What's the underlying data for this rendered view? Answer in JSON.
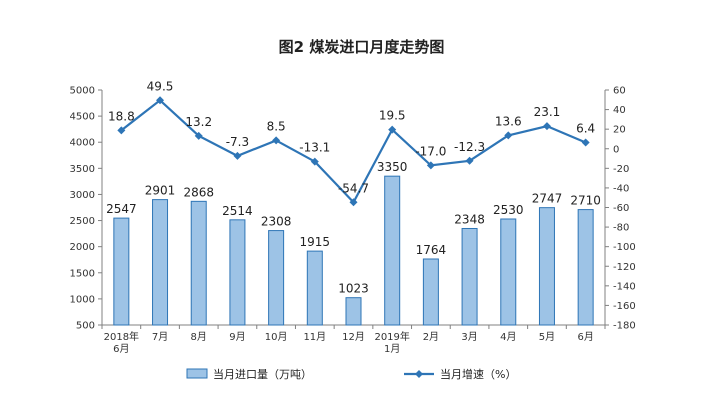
{
  "chart_data": {
    "type": "bar",
    "title": "图2  煤炭进口月度走势图",
    "categories": [
      "2018年\n6月",
      "7月",
      "8月",
      "9月",
      "10月",
      "11月",
      "12月",
      "2019年\n1月",
      "2月",
      "3月",
      "4月",
      "5月",
      "6月"
    ],
    "series": [
      {
        "name": "当月进口量（万吨）",
        "type": "bar",
        "axis": "left",
        "values": [
          2547,
          2901,
          2868,
          2514,
          2308,
          1915,
          1023,
          3350,
          1764,
          2348,
          2530,
          2747,
          2710
        ],
        "labels": [
          "2547",
          "2901",
          "2868",
          "2514",
          "2308",
          "1915",
          "1023",
          "3350",
          "1764",
          "2348",
          "2530",
          "2747",
          "2710"
        ]
      },
      {
        "name": "当月增速（%）",
        "type": "line",
        "axis": "right",
        "values": [
          18.8,
          49.5,
          13.2,
          -7.3,
          8.5,
          -13.1,
          -54.7,
          19.5,
          -17.0,
          -12.3,
          13.6,
          23.1,
          6.4
        ],
        "labels": [
          "18.8",
          "49.5",
          "13.2",
          "-7.3",
          "8.5",
          "-13.1",
          "-54.7",
          "19.5",
          "-17.0",
          "-12.3",
          "13.6",
          "23.1",
          "6.4"
        ]
      }
    ],
    "y_left": {
      "range": [
        500,
        5000
      ],
      "ticks": [
        "500",
        "1000",
        "1500",
        "2000",
        "2500",
        "3000",
        "3500",
        "4000",
        "4500",
        "5000"
      ]
    },
    "y_right": {
      "range": [
        -180,
        60
      ],
      "ticks": [
        "-180",
        "-160",
        "-140",
        "-120",
        "-100",
        "-80",
        "-60",
        "-40",
        "-20",
        "0",
        "20",
        "40",
        "60"
      ]
    },
    "legend": "bottom",
    "grid": false,
    "colors": {
      "bar_fill": "#9DC3E6",
      "bar_stroke": "#2E75B6",
      "line": "#2E75B6",
      "axis": "#808080"
    }
  }
}
